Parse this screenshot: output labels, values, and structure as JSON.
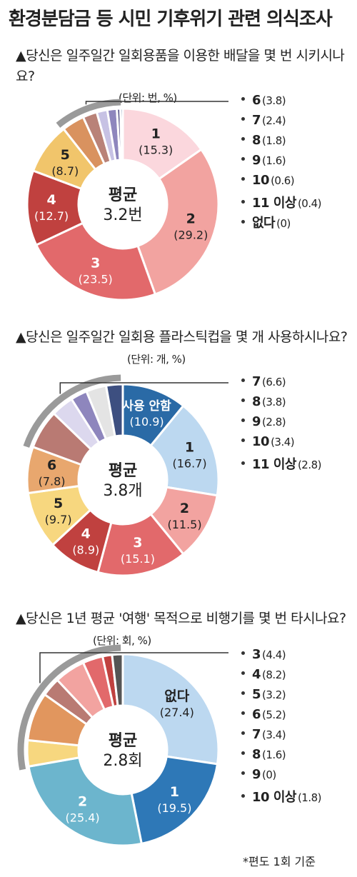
{
  "header": {
    "title": "환경분담금 등 시민 기후위기 관련 의식조사"
  },
  "footnote": "*편도 1회 기준",
  "chart_data": [
    {
      "type": "pie",
      "title": "▲당신은 일주일간 일회용품을 이용한 배달을 몇 번 시키시나요?",
      "unit": "(단위: 번, %)",
      "center_label": "평균",
      "center_value": "3.2번",
      "slices": [
        {
          "label": "1",
          "value": 15.3,
          "value_text": "(15.3)",
          "color": "#fbd7dd"
        },
        {
          "label": "2",
          "value": 29.2,
          "value_text": "(29.2)",
          "color": "#f2a3a0"
        },
        {
          "label": "3",
          "value": 23.5,
          "value_text": "(23.5)",
          "color": "#e2696b"
        },
        {
          "label": "4",
          "value": 12.7,
          "value_text": "(12.7)",
          "color": "#c0413f"
        },
        {
          "label": "5",
          "value": 8.7,
          "value_text": "(8.7)",
          "color": "#f1c56b"
        },
        {
          "label": "6",
          "value": 3.8,
          "value_text": "(3.8)",
          "color": "#d9925f"
        },
        {
          "label": "7",
          "value": 2.4,
          "value_text": "(2.4)",
          "color": "#b98278"
        },
        {
          "label": "8",
          "value": 1.8,
          "value_text": "(1.8)",
          "color": "#c7c2e4"
        },
        {
          "label": "9",
          "value": 1.6,
          "value_text": "(1.6)",
          "color": "#8e86bd"
        },
        {
          "label": "10",
          "value": 0.6,
          "value_text": "(0.6)",
          "color": "#5d5a8c"
        },
        {
          "label": "11 이상",
          "value": 0.4,
          "value_text": "(0.4)",
          "color": "#3e5a8a"
        },
        {
          "label": "없다",
          "value": 0,
          "value_text": "(0)",
          "color": "#333333"
        }
      ],
      "inside_count": 5
    },
    {
      "type": "pie",
      "title": "▲당신은 일주일간 일회용 플라스틱컵을 몇 개 사용하시나요?",
      "unit": "(단위: 개, %)",
      "center_label": "평균",
      "center_value": "3.8개",
      "slices": [
        {
          "label": "사용 안함",
          "value": 10.9,
          "value_text": "(10.9)",
          "color": "#2a6aa6"
        },
        {
          "label": "1",
          "value": 16.7,
          "value_text": "(16.7)",
          "color": "#bcd8f0"
        },
        {
          "label": "2",
          "value": 11.5,
          "value_text": "(11.5)",
          "color": "#f2a3a0"
        },
        {
          "label": "3",
          "value": 15.1,
          "value_text": "(15.1)",
          "color": "#e2696b"
        },
        {
          "label": "4",
          "value": 8.9,
          "value_text": "(8.9)",
          "color": "#c0413f"
        },
        {
          "label": "5",
          "value": 9.7,
          "value_text": "(9.7)",
          "color": "#f7d77f"
        },
        {
          "label": "6",
          "value": 7.8,
          "value_text": "(7.8)",
          "color": "#e8a76e"
        },
        {
          "label": "7",
          "value": 6.6,
          "value_text": "(6.6)",
          "color": "#b97a73"
        },
        {
          "label": "8",
          "value": 3.8,
          "value_text": "(3.8)",
          "color": "#dcd8ee"
        },
        {
          "label": "9",
          "value": 2.8,
          "value_text": "(2.8)",
          "color": "#8e86bd"
        },
        {
          "label": "10",
          "value": 3.4,
          "value_text": "(3.4)",
          "color": "#e4e4e4"
        },
        {
          "label": "11 이상",
          "value": 2.8,
          "value_text": "(2.8)",
          "color": "#3d4f80"
        }
      ],
      "inside_count": 7
    },
    {
      "type": "pie",
      "title": "▲당신은 1년 평균 '여행' 목적으로 비행기를 몇 번 타시나요?",
      "unit": "(단위: 회, %)",
      "center_label": "평균",
      "center_value": "2.8회",
      "slices": [
        {
          "label": "없다",
          "value": 27.4,
          "value_text": "(27.4)",
          "color": "#bcd8f0"
        },
        {
          "label": "1",
          "value": 19.5,
          "value_text": "(19.5)",
          "color": "#2e78b7"
        },
        {
          "label": "2",
          "value": 25.4,
          "value_text": "(25.4)",
          "color": "#6cb5cd"
        },
        {
          "label": "3",
          "value": 4.4,
          "value_text": "(4.4)",
          "color": "#f7d77f"
        },
        {
          "label": "4",
          "value": 8.2,
          "value_text": "(8.2)",
          "color": "#e1965e"
        },
        {
          "label": "5",
          "value": 3.2,
          "value_text": "(3.2)",
          "color": "#b97a73"
        },
        {
          "label": "6",
          "value": 5.2,
          "value_text": "(5.2)",
          "color": "#f2a3a0"
        },
        {
          "label": "7",
          "value": 3.4,
          "value_text": "(3.4)",
          "color": "#e2696b"
        },
        {
          "label": "8",
          "value": 1.6,
          "value_text": "(1.6)",
          "color": "#c0413f"
        },
        {
          "label": "9",
          "value": 0,
          "value_text": "(0)",
          "color": "#999999"
        },
        {
          "label": "10 이상",
          "value": 1.8,
          "value_text": "(1.8)",
          "color": "#555555"
        }
      ],
      "inside_count": 3
    }
  ]
}
